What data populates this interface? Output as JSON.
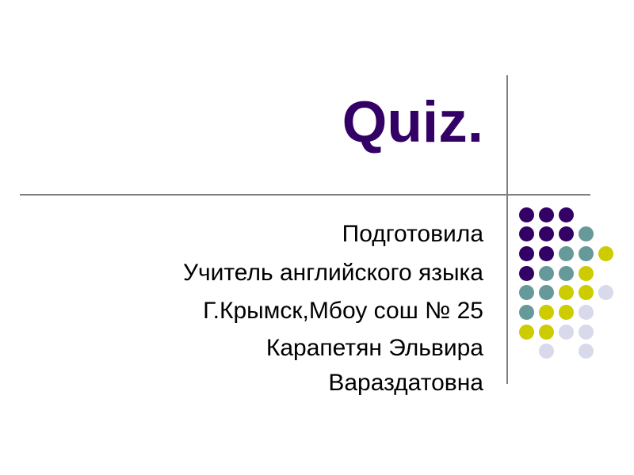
{
  "slide": {
    "title": "Quiz.",
    "lines": [
      "Подготовила",
      "Учитель английского языка",
      "Г.Крымск,Мбоу сош № 25",
      "Карапетян Эльвира Вараздатовна"
    ]
  },
  "colors": {
    "title": "#330066",
    "divider": "#808080",
    "P": "#330066",
    "T": "#669999",
    "Y": "#cccc00",
    "L": "#d9d9ec"
  },
  "dot_grid": [
    "PPP..",
    "PPPT.",
    "PPTTY",
    "PTTY.",
    "TTYYL",
    "TYYL.",
    "YYLL.",
    ".L.L."
  ]
}
